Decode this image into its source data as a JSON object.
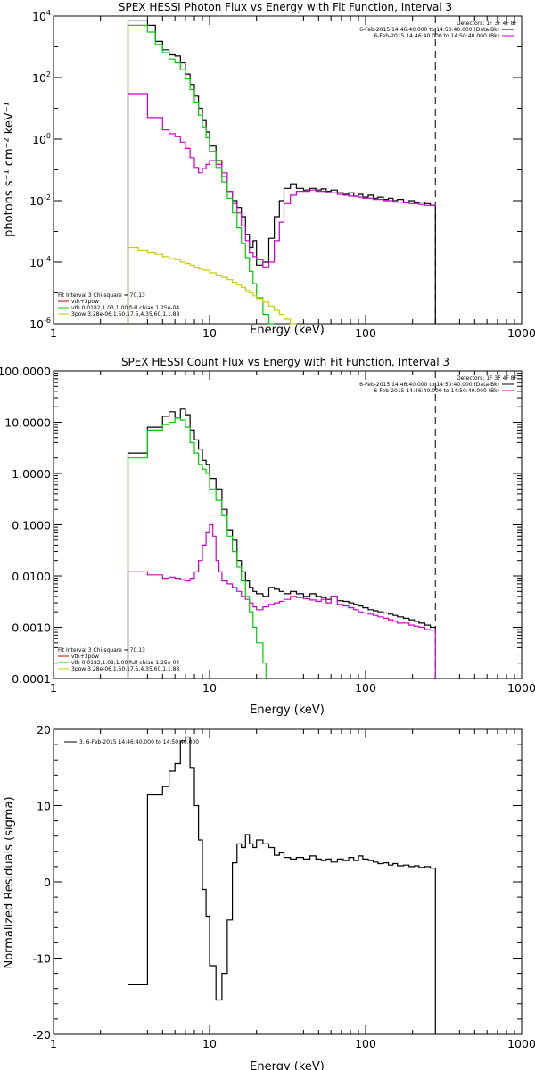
{
  "chart_data": [
    {
      "type": "line",
      "title": "SPEX HESSI Photon Flux vs Energy with Fit Function, Interval 3",
      "xlabel": "Energy (keV)",
      "ylabel": "photons s⁻¹ cm⁻² keV⁻¹",
      "xscale": "log",
      "yscale": "log",
      "xlim": [
        1,
        1000
      ],
      "ylim": [
        1e-06,
        10000.0
      ],
      "x_ticks": [
        1,
        10,
        100,
        1000
      ],
      "x_tick_labels": [
        "1",
        "10",
        "100",
        "1000"
      ],
      "y_ticks": [
        1e-06,
        0.0001,
        0.01,
        1,
        100,
        10000
      ],
      "y_tick_labels": [
        [
          "10",
          "-6"
        ],
        [
          "10",
          "-4"
        ],
        [
          "10",
          "-2"
        ],
        [
          "10",
          "0"
        ],
        [
          "10",
          "2"
        ],
        [
          "10",
          "4"
        ]
      ],
      "legend_upper": {
        "header": "Detectors: 1F 3F 4F 8F",
        "entries": [
          {
            "label": "6-Feb-2015 14:46:40.000 to 14:50:40.000 (Data-Bk)",
            "color": "#000000"
          },
          {
            "label": "6-Feb-2015 14:46:40.000 to 14:50:40.000 (Bk)",
            "color": "#cc00cc"
          }
        ]
      },
      "legend_lower": {
        "header": "Fit Interval 3   Chi-square = 70.13",
        "entries": [
          {
            "label": "vth+3pow",
            "color": "#cc0000"
          },
          {
            "label": "vth 0.0182,1.03,1.00  full chian 1.25e-04",
            "color": "#00cc00"
          },
          {
            "label": "3pow 3.28e-06,1.50,17.5,4.35,60.1,1.88",
            "color": "#cccc00"
          }
        ]
      },
      "vlines": [
        {
          "x": 3,
          "style": "dotted",
          "color": "#000000"
        },
        {
          "x": 280,
          "style": "dashed",
          "color": "#000000"
        }
      ],
      "series": [
        {
          "name": "Data-Bk",
          "color": "#000000",
          "style": "step",
          "edges": [
            3,
            4,
            4.5,
            5,
            5.5,
            6,
            6.5,
            7,
            7.5,
            8,
            8.5,
            9,
            9.5,
            10,
            11,
            12,
            13,
            14,
            15,
            16,
            17,
            18,
            19,
            20,
            22,
            24,
            26,
            28,
            30,
            33,
            36,
            40,
            44,
            48,
            52,
            56,
            60,
            66,
            72,
            78,
            84,
            90,
            96,
            104,
            112,
            120,
            130,
            140,
            150,
            160,
            175,
            190,
            205,
            220,
            240,
            260,
            280
          ],
          "values": [
            7000,
            5000,
            1500,
            800,
            550,
            500,
            300,
            130,
            60,
            25,
            10,
            4,
            1.7,
            0.6,
            0.2,
            0.06,
            0.02,
            0.01,
            0.006,
            0.003,
            0.0008,
            0.0003,
            0.0005,
            8e-05,
            0.0001,
            0.0006,
            0.003,
            0.01,
            0.025,
            0.035,
            0.025,
            0.022,
            0.025,
            0.022,
            0.024,
            0.02,
            0.022,
            0.018,
            0.016,
            0.018,
            0.014,
            0.016,
            0.013,
            0.015,
            0.012,
            0.013,
            0.011,
            0.012,
            0.01,
            0.011,
            0.009,
            0.01,
            0.0085,
            0.009,
            0.008,
            0.007
          ]
        },
        {
          "name": "Bk",
          "color": "#cc00cc",
          "style": "step",
          "edges": [
            3,
            4,
            5,
            5.5,
            6,
            6.5,
            7,
            7.5,
            8,
            8.5,
            9,
            9.5,
            10,
            11,
            12,
            13,
            14,
            15,
            16,
            17,
            18,
            19,
            20,
            22,
            24,
            26,
            28,
            30,
            33,
            36,
            40,
            44,
            48,
            52,
            56,
            60,
            66,
            72,
            78,
            84,
            90,
            96,
            104,
            112,
            120,
            130,
            140,
            150,
            160,
            175,
            190,
            205,
            220,
            240,
            260,
            280
          ],
          "values": [
            30,
            5,
            2,
            1.5,
            1.2,
            0.8,
            0.5,
            0.25,
            0.12,
            0.08,
            0.11,
            0.15,
            0.2,
            0.15,
            0.08,
            0.02,
            0.008,
            0.004,
            0.0015,
            0.0005,
            0.0002,
            0.00015,
            0.00012,
            7e-05,
            0.0001,
            0.0005,
            0.002,
            0.008,
            0.015,
            0.02,
            0.02,
            0.022,
            0.02,
            0.02,
            0.018,
            0.018,
            0.016,
            0.015,
            0.014,
            0.014,
            0.013,
            0.012,
            0.012,
            0.011,
            0.011,
            0.01,
            0.01,
            0.009,
            0.009,
            0.0085,
            0.008,
            0.008,
            0.0075,
            0.007,
            0.007,
            0.0065
          ]
        },
        {
          "name": "vth",
          "color": "#00cc00",
          "style": "step",
          "edges": [
            3,
            4,
            4.5,
            5,
            5.5,
            6,
            6.5,
            7,
            7.5,
            8,
            8.5,
            9,
            9.5,
            10,
            11,
            12,
            13,
            14,
            15,
            16,
            17,
            18,
            19,
            20,
            22,
            24,
            26
          ],
          "values": [
            5000,
            3000,
            1200,
            650,
            400,
            300,
            180,
            90,
            40,
            16,
            6,
            2.5,
            1.1,
            0.4,
            0.12,
            0.04,
            0.012,
            0.004,
            0.0013,
            0.0004,
            0.00014,
            5e-05,
            2e-05,
            7e-06,
            2e-06,
            5e-07
          ]
        },
        {
          "name": "3pow",
          "color": "#cccc00",
          "style": "step",
          "edges": [
            3,
            3.5,
            4,
            4.5,
            5,
            5.5,
            6,
            6.5,
            7,
            7.5,
            8,
            8.5,
            9,
            10,
            11,
            12,
            13,
            14,
            15,
            16,
            17,
            18,
            19,
            20,
            22,
            24,
            26,
            28,
            30,
            33,
            36
          ],
          "values": [
            0.0003,
            0.00025,
            0.0002,
            0.00018,
            0.00015,
            0.00013,
            0.00012,
            0.0001,
            9e-05,
            8e-05,
            7e-05,
            6e-05,
            5.5e-05,
            4.5e-05,
            3.8e-05,
            3.2e-05,
            2.7e-05,
            2.2e-05,
            1.8e-05,
            1.5e-05,
            1.2e-05,
            1e-05,
            8e-06,
            6.5e-06,
            5e-06,
            3.7e-06,
            2.7e-06,
            2e-06,
            1.4e-06,
            1e-06
          ]
        }
      ]
    },
    {
      "type": "line",
      "title": "SPEX HESSI Count Flux vs Energy with Fit Function, Interval 3",
      "xlabel": "Energy (keV)",
      "ylabel": "",
      "xscale": "log",
      "yscale": "log",
      "xlim": [
        1,
        1000
      ],
      "ylim": [
        0.0001,
        100
      ],
      "x_ticks": [
        1,
        10,
        100,
        1000
      ],
      "x_tick_labels": [
        "1",
        "10",
        "100",
        "1000"
      ],
      "y_ticks": [
        0.0001,
        0.001,
        0.01,
        0.1,
        1,
        10,
        100
      ],
      "y_tick_labels": [
        "0.0001",
        "0.0010",
        "0.0100",
        "0.1000",
        "1.0000",
        "10.0000",
        "100.0000"
      ],
      "legend_upper": {
        "header": "Detectors: 1F 3F 4F 8F",
        "entries": [
          {
            "label": "6-Feb-2015 14:46:40.000 to 14:50:40.000 (Data-Bk)",
            "color": "#000000"
          },
          {
            "label": "6-Feb-2015 14:46:40.000 to 14:50:40.000 (Bk)",
            "color": "#cc00cc"
          }
        ]
      },
      "legend_lower": {
        "header": "Fit Interval 3   Chi-square = 70.13",
        "entries": [
          {
            "label": "vth+3pow",
            "color": "#cc0000"
          },
          {
            "label": "vth 0.0182,1.03,1.00  full chian 1.25e-04",
            "color": "#00cc00"
          },
          {
            "label": "3pow 3.28e-06,1.50,17.5,4.35,60.1,1.88",
            "color": "#cccc00"
          }
        ]
      },
      "vlines": [
        {
          "x": 3,
          "style": "dotted",
          "color": "#000000"
        },
        {
          "x": 280,
          "style": "dashed",
          "color": "#000000"
        }
      ],
      "series": [
        {
          "name": "Data-Bk",
          "color": "#000000",
          "style": "step",
          "edges": [
            3,
            4,
            5,
            5.5,
            6,
            6.5,
            7,
            7.5,
            8,
            8.5,
            9,
            9.5,
            10,
            11,
            12,
            13,
            14,
            15,
            16,
            17,
            18,
            19,
            20,
            22,
            24,
            26,
            28,
            30,
            33,
            36,
            40,
            44,
            48,
            52,
            56,
            60,
            66,
            72,
            78,
            84,
            90,
            96,
            104,
            112,
            120,
            130,
            140,
            150,
            160,
            175,
            190,
            205,
            220,
            240,
            260,
            280
          ],
          "values": [
            2.5,
            8,
            13,
            16,
            12,
            18,
            14,
            7,
            4.5,
            3,
            1.8,
            1.5,
            0.8,
            0.5,
            0.2,
            0.08,
            0.05,
            0.02,
            0.012,
            0.008,
            0.006,
            0.005,
            0.0045,
            0.004,
            0.006,
            0.0055,
            0.005,
            0.0045,
            0.005,
            0.0045,
            0.004,
            0.0045,
            0.004,
            0.0038,
            0.0035,
            0.004,
            0.0033,
            0.0032,
            0.003,
            0.0028,
            0.0026,
            0.0024,
            0.0022,
            0.0021,
            0.002,
            0.0019,
            0.0018,
            0.0017,
            0.0016,
            0.0015,
            0.0014,
            0.0013,
            0.0012,
            0.0011,
            0.001,
            0.00095
          ]
        },
        {
          "name": "Bk",
          "color": "#cc00cc",
          "style": "step",
          "edges": [
            3,
            4,
            5,
            5.5,
            6,
            6.5,
            7,
            7.5,
            8,
            8.5,
            9,
            9.5,
            10,
            10.5,
            11,
            11.5,
            12,
            13,
            14,
            15,
            16,
            17,
            18,
            19,
            20,
            22,
            24,
            26,
            28,
            30,
            33,
            36,
            40,
            44,
            48,
            52,
            56,
            60,
            66,
            72,
            78,
            84,
            90,
            96,
            104,
            112,
            120,
            130,
            140,
            150,
            160,
            175,
            190,
            205,
            220,
            240,
            260,
            280
          ],
          "values": [
            0.012,
            0.0105,
            0.009,
            0.0095,
            0.009,
            0.0085,
            0.008,
            0.009,
            0.012,
            0.02,
            0.04,
            0.07,
            0.1,
            0.06,
            0.02,
            0.012,
            0.008,
            0.007,
            0.006,
            0.005,
            0.004,
            0.0035,
            0.003,
            0.0025,
            0.0022,
            0.0025,
            0.0028,
            0.003,
            0.0032,
            0.0035,
            0.004,
            0.0038,
            0.0036,
            0.0034,
            0.0032,
            0.0035,
            0.003,
            0.004,
            0.0028,
            0.0026,
            0.0024,
            0.0022,
            0.002,
            0.0019,
            0.0018,
            0.0017,
            0.0016,
            0.0015,
            0.0014,
            0.0013,
            0.0012,
            0.0012,
            0.0011,
            0.00105,
            0.001,
            0.0009,
            0.00088
          ]
        },
        {
          "name": "vth",
          "color": "#00cc00",
          "style": "step",
          "edges": [
            3,
            4,
            5,
            5.5,
            6,
            6.5,
            7,
            7.5,
            8,
            8.5,
            9,
            9.5,
            10,
            11,
            12,
            13,
            14,
            15,
            16,
            17,
            18,
            19,
            20,
            22,
            23
          ],
          "values": [
            2,
            7,
            9,
            10,
            12,
            11,
            8,
            4,
            2.5,
            1.5,
            1.2,
            1,
            0.5,
            0.3,
            0.15,
            0.06,
            0.03,
            0.015,
            0.008,
            0.004,
            0.002,
            0.001,
            0.0005,
            0.0002
          ]
        }
      ]
    },
    {
      "type": "line",
      "title": "",
      "xlabel": "Energy (keV)",
      "ylabel": "Normalized Residuals (sigma)",
      "xscale": "log",
      "yscale": "linear",
      "xlim": [
        1,
        1000
      ],
      "ylim": [
        -20,
        20
      ],
      "x_ticks": [
        1,
        10,
        100,
        1000
      ],
      "x_tick_labels": [
        "1",
        "10",
        "100",
        "1000"
      ],
      "y_ticks": [
        -20,
        -10,
        0,
        10,
        20
      ],
      "y_tick_labels": [
        "-20",
        "-10",
        "0",
        "10",
        "20"
      ],
      "legend_upper": {
        "header": "",
        "entries": [
          {
            "label": "3.  6-Feb-2015 14:46:40.000 to 14:50:40.000",
            "color": "#000000"
          }
        ]
      },
      "series": [
        {
          "name": "3",
          "color": "#000000",
          "style": "step",
          "edges": [
            3,
            4,
            5,
            5.5,
            6,
            6.5,
            7,
            7.5,
            8,
            8.5,
            9,
            9.5,
            10,
            11,
            12,
            13,
            14,
            15,
            16,
            17,
            18,
            19,
            20,
            22,
            24,
            26,
            28,
            30,
            33,
            36,
            40,
            44,
            48,
            52,
            56,
            60,
            66,
            72,
            78,
            84,
            90,
            96,
            104,
            112,
            120,
            130,
            140,
            150,
            160,
            175,
            190,
            205,
            220,
            240,
            260,
            280
          ],
          "values": [
            -13.5,
            11.4,
            12.5,
            14.5,
            15.5,
            18.5,
            19,
            15,
            10,
            5.5,
            -1,
            -4.5,
            -11,
            -15.5,
            -12,
            -5,
            2.5,
            5,
            4.5,
            6.2,
            5,
            4.5,
            5.5,
            5,
            4.5,
            3.5,
            3.8,
            3.2,
            3,
            3.2,
            3,
            3.4,
            3,
            2.8,
            3,
            2.6,
            3,
            2.8,
            3.2,
            2.8,
            3.4,
            3,
            2.8,
            2.6,
            2.4,
            2.5,
            2.2,
            2.4,
            2.1,
            2.2,
            2,
            2.1,
            1.9,
            2,
            1.8
          ]
        }
      ]
    }
  ]
}
